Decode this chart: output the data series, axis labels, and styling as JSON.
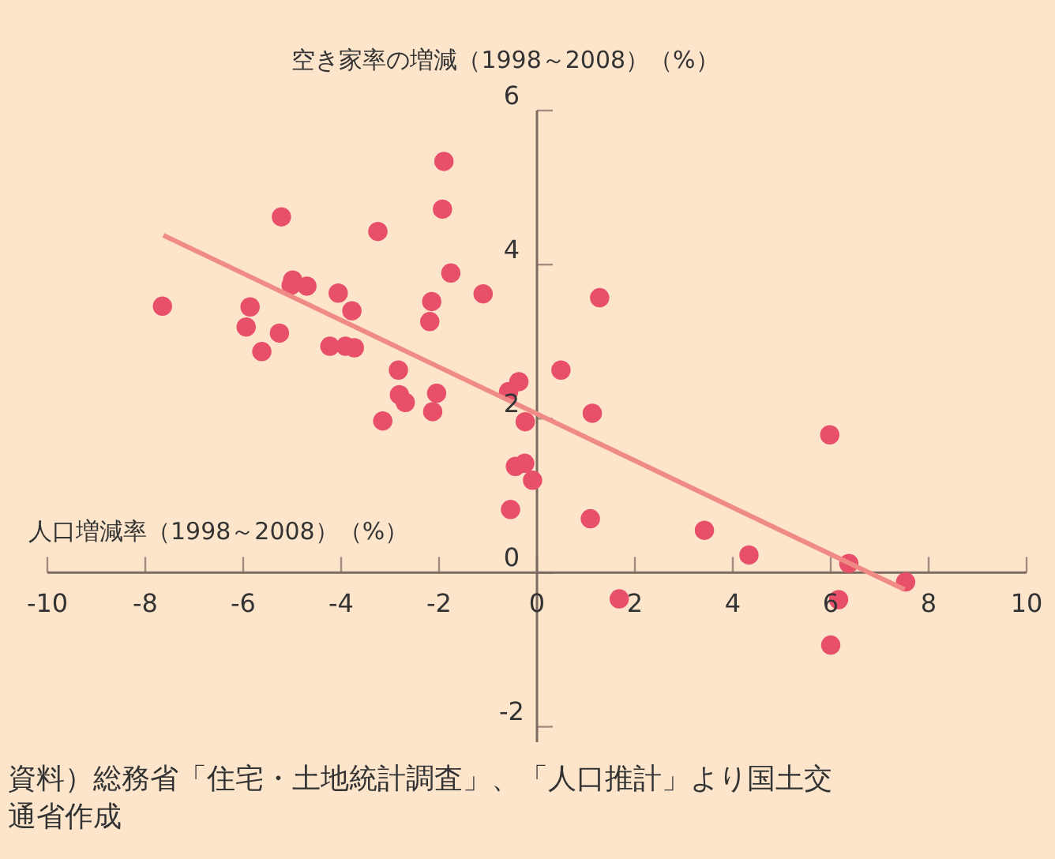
{
  "chart_data": {
    "type": "scatter",
    "xlabel": "人口増減率（1998～2008）（%）",
    "ylabel": "空き家率の増減（1998～2008）（%）",
    "xlim": [
      -10,
      10
    ],
    "ylim": [
      -2.2,
      6
    ],
    "xticks": [
      -10,
      -8,
      -6,
      -4,
      -2,
      0,
      2,
      4,
      6,
      8,
      10
    ],
    "yticks": [
      -2,
      0,
      2,
      4,
      6
    ],
    "grid": false,
    "series": [
      {
        "color": "#e8506a",
        "marker": "circle",
        "x": [
          -7.65,
          -5.22,
          -1.9,
          -1.93,
          -3.25,
          -4.99,
          -5.02,
          -4.7,
          -1.76,
          -1.1,
          -4.06,
          -5.86,
          -3.78,
          -2.15,
          -2.19,
          -5.94,
          -5.26,
          -5.62,
          -4.23,
          -3.91,
          -3.73,
          -2.83,
          -2.81,
          -2.69,
          -2.05,
          -0.58,
          -0.37,
          -3.15,
          -2.13,
          -0.24,
          -0.44,
          -0.25,
          -0.09,
          -0.54,
          0.49,
          1.13,
          5.98,
          1.09,
          3.42,
          4.33,
          6.37,
          7.53,
          1.68,
          6.16,
          6.0,
          1.28
        ],
        "values": [
          3.46,
          4.62,
          5.34,
          4.72,
          4.43,
          3.8,
          3.73,
          3.72,
          3.89,
          3.62,
          3.63,
          3.45,
          3.4,
          3.52,
          3.26,
          3.19,
          3.11,
          2.87,
          2.94,
          2.94,
          2.92,
          2.63,
          2.31,
          2.21,
          2.33,
          2.35,
          2.48,
          1.97,
          2.09,
          1.96,
          1.38,
          1.42,
          1.2,
          0.82,
          2.63,
          2.07,
          1.79,
          0.7,
          0.55,
          0.23,
          0.12,
          -0.12,
          -0.34,
          -0.35,
          -0.94,
          3.57
        ]
      },
      {
        "type": "line",
        "color": "#f08a85",
        "x": [
          -7.63,
          7.51
        ],
        "values": [
          4.38,
          -0.22
        ]
      }
    ],
    "annotations": [
      "資料）総務省「住宅・土地統計調査」、「人口推計」より国土交通省作成"
    ]
  }
}
